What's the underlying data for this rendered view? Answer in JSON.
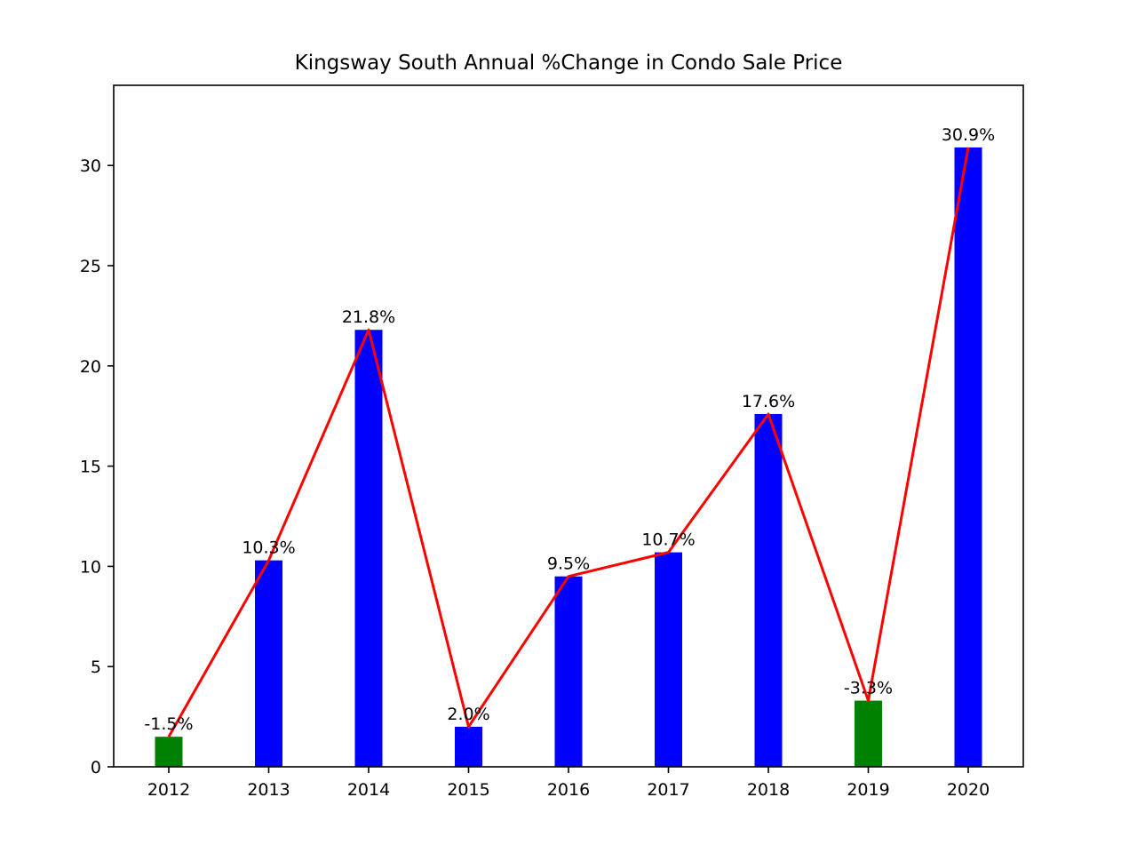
{
  "chart_data": {
    "type": "bar",
    "title": "Kingsway South Annual %Change in Condo Sale Price",
    "xlabel": "",
    "ylabel": "",
    "categories": [
      "2012",
      "2013",
      "2014",
      "2015",
      "2016",
      "2017",
      "2018",
      "2019",
      "2020"
    ],
    "values": [
      1.5,
      10.3,
      21.8,
      2.0,
      9.5,
      10.7,
      17.6,
      3.3,
      30.9
    ],
    "data_labels": [
      "-1.5%",
      "10.3%",
      "21.8%",
      "2.0%",
      "9.5%",
      "10.7%",
      "17.6%",
      "-3.3%",
      "30.9%"
    ],
    "bar_colors": [
      "#008000",
      "#0000ff",
      "#0000ff",
      "#0000ff",
      "#0000ff",
      "#0000ff",
      "#0000ff",
      "#008000",
      "#0000ff"
    ],
    "line": {
      "color": "#ff0000",
      "values": [
        1.5,
        10.3,
        21.8,
        2.0,
        9.5,
        10.7,
        17.6,
        3.3,
        30.9
      ]
    },
    "ylim": [
      0,
      34
    ],
    "yticks": [
      0,
      5,
      10,
      15,
      20,
      25,
      30
    ],
    "grid": false,
    "legend": "none"
  }
}
